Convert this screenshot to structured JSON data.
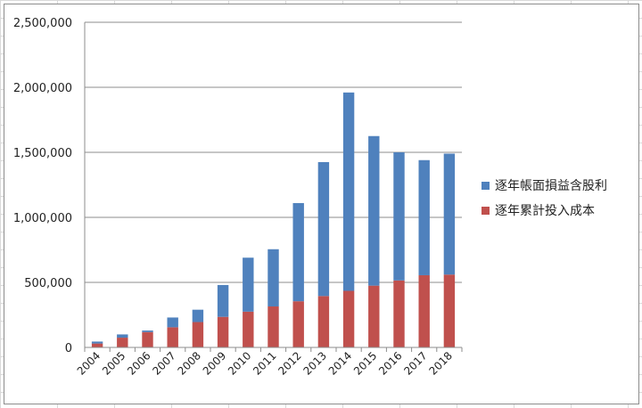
{
  "chart_data": {
    "type": "bar",
    "stacked": true,
    "categories": [
      "2004",
      "2005",
      "2006",
      "2007",
      "2008",
      "2009",
      "2010",
      "2011",
      "2012",
      "2013",
      "2014",
      "2015",
      "2016",
      "2017",
      "2018"
    ],
    "series": [
      {
        "name": "逐年累計投入成本",
        "color": "#c0504d",
        "values": [
          30000,
          75000,
          118000,
          155000,
          195000,
          235000,
          275000,
          315000,
          355000,
          395000,
          435000,
          475000,
          515000,
          555000,
          560000
        ]
      },
      {
        "name": "逐年帳面損益含股利",
        "color": "#4f81bd",
        "values": [
          15000,
          25000,
          12000,
          75000,
          95000,
          245000,
          415000,
          440000,
          755000,
          1030000,
          1525000,
          1150000,
          985000,
          885000,
          930000
        ]
      }
    ],
    "yticks": [
      "0",
      "500,000",
      "1,000,000",
      "1,500,000",
      "2,000,000",
      "2,500,000"
    ],
    "ylim": [
      0,
      2500000
    ],
    "grid": true,
    "legend": "right",
    "legend_order": [
      1,
      0
    ]
  }
}
